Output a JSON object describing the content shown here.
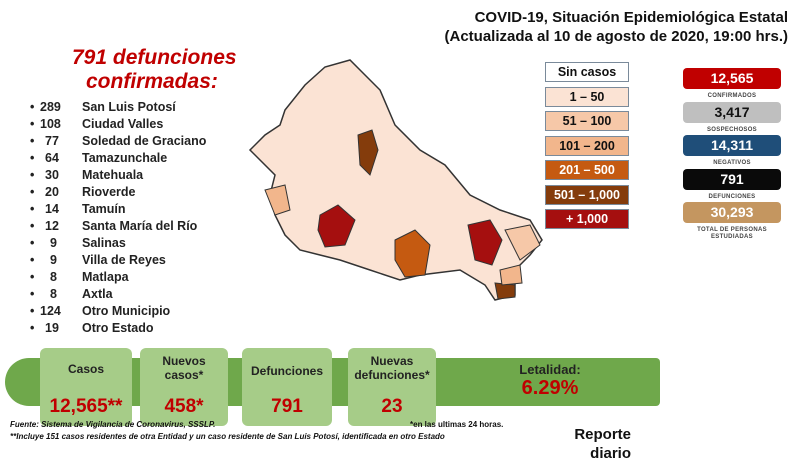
{
  "title": {
    "line1": "COVID-19, Situación Epidemiológica Estatal",
    "line2": "(Actualizada al 10 de agosto de 2020, 19:00 hrs.)"
  },
  "deaths_heading": {
    "line1": "791 defunciones",
    "line2": "confirmadas:"
  },
  "deaths_list": [
    {
      "n": "289",
      "name": "San Luis Potosí"
    },
    {
      "n": "108",
      "name": "Ciudad Valles"
    },
    {
      "n": "77",
      "name": "Soledad de Graciano"
    },
    {
      "n": "64",
      "name": "Tamazunchale"
    },
    {
      "n": "30",
      "name": "Matehuala"
    },
    {
      "n": "20",
      "name": "Rioverde"
    },
    {
      "n": "14",
      "name": "Tamuín"
    },
    {
      "n": "12",
      "name": "Santa María del Río"
    },
    {
      "n": "9",
      "name": "Salinas"
    },
    {
      "n": "9",
      "name": "Villa de Reyes"
    },
    {
      "n": "8",
      "name": "Matlapa"
    },
    {
      "n": "8",
      "name": "Axtla"
    },
    {
      "n": "124",
      "name": "Otro Municipio"
    },
    {
      "n": "19",
      "name": "Otro Estado"
    }
  ],
  "legend": [
    {
      "label": "Sin casos",
      "bg": "#ffffff",
      "fg": "#111"
    },
    {
      "label": "1 – 50",
      "bg": "#fbe3d4",
      "fg": "#111"
    },
    {
      "label": "51 – 100",
      "bg": "#f6c8a8",
      "fg": "#111"
    },
    {
      "label": "101 – 200",
      "bg": "#f2b68c",
      "fg": "#111"
    },
    {
      "label": "201 – 500",
      "bg": "#c55a11",
      "fg": "#fff"
    },
    {
      "label": "501 – 1,000",
      "bg": "#843c0c",
      "fg": "#fff"
    },
    {
      "label": "+ 1,000",
      "bg": "#a50f0f",
      "fg": "#fff"
    }
  ],
  "stats": [
    {
      "value": "12,565",
      "label": "CONFIRMADOS",
      "bg": "#c00000",
      "fg": "#fff"
    },
    {
      "value": "3,417",
      "label": "SOSPECHOSOS",
      "bg": "#bfbfbf",
      "fg": "#111"
    },
    {
      "value": "14,311",
      "label": "NEGATIVOS",
      "bg": "#1f4e79",
      "fg": "#fff"
    },
    {
      "value": "791",
      "label": "DEFUNCIONES",
      "bg": "#0a0a0a",
      "fg": "#fff"
    },
    {
      "value": "30,293",
      "label": "TOTAL DE PERSONAS ESTUDIADAS",
      "bg": "#c49660",
      "fg": "#fff"
    }
  ],
  "summary": {
    "casos": {
      "label": "Casos",
      "value": "12,565**"
    },
    "nuevos": {
      "label": "Nuevos casos*",
      "value": "458*"
    },
    "defunciones": {
      "label": "Defunciones",
      "value": "791"
    },
    "nuevas_def": {
      "label": "Nuevas defunciones*",
      "value": "23"
    },
    "letalidad": {
      "label": "Letalidad:",
      "value": "6.29%"
    }
  },
  "footer": {
    "source": "Fuente: Sistema de Vigilancia de Coronavirus, SSSLP.",
    "note24": "*en las ultimas 24 horas.",
    "note2": "**Incluye 151 casos residentes de otra Entidad y un caso residente de San Luis Potosí, identificada en otro Estado",
    "report": "Reporte diario"
  }
}
